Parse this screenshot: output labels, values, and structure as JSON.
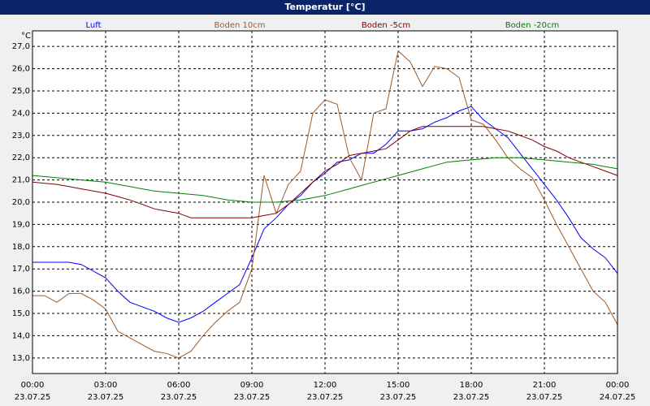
{
  "chart_data": {
    "type": "line",
    "title": "Temperatur [°C]",
    "y_unit": "°C",
    "x": [
      0,
      0.5,
      1,
      1.5,
      2,
      2.5,
      3,
      3.5,
      4,
      4.5,
      5,
      5.5,
      6,
      6.5,
      7,
      7.5,
      8,
      8.5,
      9,
      9.5,
      10,
      10.5,
      11,
      11.5,
      12,
      12.5,
      13,
      13.5,
      14,
      14.5,
      15,
      15.5,
      16,
      16.5,
      17,
      17.5,
      18,
      18.5,
      19,
      19.5,
      20,
      20.5,
      21,
      21.5,
      22,
      22.5,
      23,
      23.5,
      24
    ],
    "series": [
      {
        "name": "Luft",
        "color": "#0000ff",
        "values": [
          17.3,
          17.3,
          17.3,
          17.3,
          17.2,
          16.9,
          16.6,
          16.0,
          15.5,
          15.3,
          15.1,
          14.8,
          14.6,
          14.8,
          15.1,
          15.5,
          15.9,
          16.3,
          17.5,
          18.8,
          19.3,
          19.9,
          20.3,
          20.9,
          21.3,
          21.8,
          21.9,
          22.2,
          22.2,
          22.6,
          23.2,
          23.2,
          23.3,
          23.6,
          23.8,
          24.1,
          24.3,
          23.7,
          23.3,
          22.9,
          22.2,
          21.5,
          20.8,
          20.1,
          19.3,
          18.4,
          17.9,
          17.5,
          16.8
        ]
      },
      {
        "name": "Boden 10cm",
        "color": "#9c5a2a",
        "values": [
          15.8,
          15.8,
          15.5,
          15.9,
          15.9,
          15.6,
          15.2,
          14.2,
          13.9,
          13.6,
          13.3,
          13.2,
          13.0,
          13.3,
          14.0,
          14.6,
          15.1,
          15.5,
          17.0,
          21.2,
          19.5,
          20.8,
          21.4,
          24.0,
          24.6,
          24.4,
          22.0,
          21.0,
          24.0,
          24.2,
          26.8,
          26.3,
          25.2,
          26.1,
          26.0,
          25.6,
          23.7,
          23.5,
          22.8,
          22.0,
          21.5,
          21.1,
          20.1,
          19.0,
          18.0,
          17.0,
          16.0,
          15.5,
          14.5
        ]
      },
      {
        "name": "Boden -5cm",
        "color": "#800000",
        "values": [
          20.9,
          20.85,
          20.8,
          20.7,
          20.6,
          20.5,
          20.4,
          20.25,
          20.1,
          19.9,
          19.7,
          19.6,
          19.5,
          19.3,
          19.3,
          19.3,
          19.3,
          19.3,
          19.3,
          19.4,
          19.5,
          19.9,
          20.4,
          20.9,
          21.4,
          21.7,
          22.1,
          22.2,
          22.3,
          22.4,
          22.8,
          23.2,
          23.4,
          23.4,
          23.4,
          23.4,
          23.4,
          23.4,
          23.3,
          23.2,
          23.0,
          22.8,
          22.5,
          22.3,
          22.0,
          21.8,
          21.6,
          21.4,
          21.2
        ]
      },
      {
        "name": "Boden -20cm",
        "color": "#008000",
        "values": [
          21.2,
          21.15,
          21.1,
          21.05,
          21.0,
          20.95,
          20.9,
          20.8,
          20.7,
          20.6,
          20.5,
          20.45,
          20.4,
          20.35,
          20.3,
          20.2,
          20.1,
          20.05,
          20.0,
          20.0,
          20.0,
          20.05,
          20.1,
          20.2,
          20.3,
          20.45,
          20.6,
          20.75,
          20.9,
          21.05,
          21.2,
          21.35,
          21.5,
          21.65,
          21.8,
          21.85,
          21.9,
          21.95,
          22.0,
          22.0,
          22.0,
          21.95,
          21.9,
          21.85,
          21.8,
          21.75,
          21.7,
          21.6,
          21.5
        ]
      }
    ],
    "xlim": [
      0,
      24
    ],
    "xticks": [
      {
        "value": 0,
        "label": "00:00"
      },
      {
        "value": 3,
        "label": "03:00"
      },
      {
        "value": 6,
        "label": "06:00"
      },
      {
        "value": 9,
        "label": "09:00"
      },
      {
        "value": 12,
        "label": "12:00"
      },
      {
        "value": 15,
        "label": "15:00"
      },
      {
        "value": 18,
        "label": "18:00"
      },
      {
        "value": 21,
        "label": "21:00"
      },
      {
        "value": 24,
        "label": "00:00"
      }
    ],
    "xtick_dates": [
      "23.07.25",
      "23.07.25",
      "23.07.25",
      "23.07.25",
      "23.07.25",
      "23.07.25",
      "23.07.25",
      "23.07.25",
      "24.07.25"
    ],
    "ylim": [
      12.3,
      27.7
    ],
    "yticks": [
      {
        "value": 13,
        "label": "13,0"
      },
      {
        "value": 14,
        "label": "14,0"
      },
      {
        "value": 15,
        "label": "15,0"
      },
      {
        "value": 16,
        "label": "16,0"
      },
      {
        "value": 17,
        "label": "17,0"
      },
      {
        "value": 18,
        "label": "18,0"
      },
      {
        "value": 19,
        "label": "19,0"
      },
      {
        "value": 20,
        "label": "20,0"
      },
      {
        "value": 21,
        "label": "21,0"
      },
      {
        "value": 22,
        "label": "22,0"
      },
      {
        "value": 23,
        "label": "23,0"
      },
      {
        "value": 24,
        "label": "24,0"
      },
      {
        "value": 25,
        "label": "25,0"
      },
      {
        "value": 26,
        "label": "26,0"
      },
      {
        "value": 27,
        "label": "27,0"
      }
    ],
    "grid": true
  }
}
